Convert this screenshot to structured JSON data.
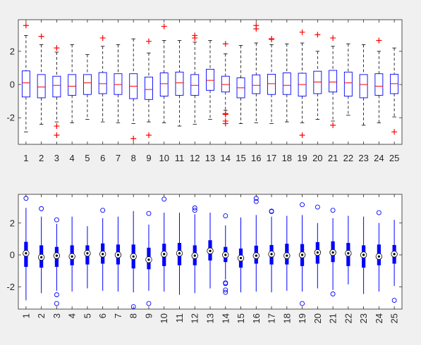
{
  "colors": {
    "figure_bg": "#f0f0f0",
    "axes_bg": "#ffffff",
    "axis_line": "#262626",
    "box": "#0000ff",
    "whisker": "#000000",
    "median_traditional": "#ff0000",
    "outlier_traditional": "#ff0000",
    "outlier_compact": "#0000ff"
  },
  "chart_data": [
    {
      "type": "box",
      "style": "traditional",
      "categories": [
        "1",
        "2",
        "3",
        "4",
        "5",
        "6",
        "7",
        "8",
        "9",
        "10",
        "11",
        "12",
        "13",
        "14",
        "15",
        "16",
        "17",
        "18",
        "19",
        "20",
        "21",
        "22",
        "23",
        "24",
        "25"
      ],
      "ylim": [
        -3.6,
        3.9
      ],
      "yticks": [
        -2,
        0,
        2
      ],
      "ytick_labels": [
        "-2",
        "0",
        "2"
      ],
      "tick_label_rotation": 0,
      "outlier_marker": "+",
      "grid": false,
      "boxes": [
        {
          "label": "1",
          "min": -2.85,
          "q1": -0.75,
          "median": 0.1,
          "q3": 0.82,
          "max": 2.95,
          "outliers": [
            3.55
          ]
        },
        {
          "label": "2",
          "min": -2.4,
          "q1": -0.8,
          "median": -0.15,
          "q3": 0.6,
          "max": 2.4,
          "outliers": [
            2.9
          ]
        },
        {
          "label": "3",
          "min": -2.25,
          "q1": -0.75,
          "median": -0.05,
          "q3": 0.5,
          "max": 1.95,
          "outliers": [
            2.2,
            -2.5,
            -3.05
          ]
        },
        {
          "label": "4",
          "min": -2.3,
          "q1": -0.65,
          "median": -0.1,
          "q3": 0.6,
          "max": 2.4,
          "outliers": []
        },
        {
          "label": "5",
          "min": -2.1,
          "q1": -0.6,
          "median": 0.1,
          "q3": 0.6,
          "max": 1.8,
          "outliers": []
        },
        {
          "label": "6",
          "min": -2.25,
          "q1": -0.55,
          "median": 0.05,
          "q3": 0.72,
          "max": 2.3,
          "outliers": [
            2.8
          ]
        },
        {
          "label": "7",
          "min": -2.3,
          "q1": -0.6,
          "median": 0.0,
          "q3": 0.65,
          "max": 2.4,
          "outliers": []
        },
        {
          "label": "8",
          "min": -2.35,
          "q1": -0.85,
          "median": -0.1,
          "q3": 0.65,
          "max": 2.75,
          "outliers": [
            -3.25
          ]
        },
        {
          "label": "9",
          "min": -2.25,
          "q1": -0.9,
          "median": -0.3,
          "q3": 0.45,
          "max": 1.9,
          "outliers": [
            2.6,
            -3.05
          ]
        },
        {
          "label": "10",
          "min": -2.3,
          "q1": -0.7,
          "median": 0.05,
          "q3": 0.7,
          "max": 2.65,
          "outliers": [
            3.5
          ]
        },
        {
          "label": "11",
          "min": -2.5,
          "q1": -0.65,
          "median": 0.1,
          "q3": 0.75,
          "max": 2.65,
          "outliers": []
        },
        {
          "label": "12",
          "min": -2.4,
          "q1": -0.65,
          "median": -0.05,
          "q3": 0.6,
          "max": 2.55,
          "outliers": [
            2.95,
            2.8
          ]
        },
        {
          "label": "13",
          "min": -2.1,
          "q1": -0.35,
          "median": 0.25,
          "q3": 0.92,
          "max": 2.65,
          "outliers": []
        },
        {
          "label": "14",
          "min": -1.55,
          "q1": -0.45,
          "median": 0.0,
          "q3": 0.5,
          "max": 1.85,
          "outliers": [
            2.45,
            -1.75,
            -1.8,
            -2.2,
            -2.35
          ]
        },
        {
          "label": "15",
          "min": -2.35,
          "q1": -0.8,
          "median": -0.2,
          "q3": 0.4,
          "max": 2.35,
          "outliers": []
        },
        {
          "label": "16",
          "min": -2.3,
          "q1": -0.55,
          "median": -0.05,
          "q3": 0.58,
          "max": 2.5,
          "outliers": [
            3.35,
            3.55
          ]
        },
        {
          "label": "17",
          "min": -2.35,
          "q1": -0.6,
          "median": 0.05,
          "q3": 0.62,
          "max": 2.4,
          "outliers": [
            2.72,
            2.75
          ]
        },
        {
          "label": "18",
          "min": -2.25,
          "q1": -0.6,
          "median": -0.05,
          "q3": 0.7,
          "max": 2.45,
          "outliers": []
        },
        {
          "label": "19",
          "min": -2.3,
          "q1": -0.7,
          "median": 0.0,
          "q3": 0.68,
          "max": 2.5,
          "outliers": [
            3.15,
            -3.05
          ]
        },
        {
          "label": "20",
          "min": -2.1,
          "q1": -0.55,
          "median": 0.15,
          "q3": 0.8,
          "max": 2.0,
          "outliers": [
            3.0
          ]
        },
        {
          "label": "21",
          "min": -2.2,
          "q1": -0.45,
          "median": 0.15,
          "q3": 0.85,
          "max": 2.3,
          "outliers": [
            2.8,
            -2.45
          ]
        },
        {
          "label": "22",
          "min": -1.85,
          "q1": -0.7,
          "median": 0.1,
          "q3": 0.75,
          "max": 2.45,
          "outliers": []
        },
        {
          "label": "23",
          "min": -2.45,
          "q1": -0.8,
          "median": 0.0,
          "q3": 0.6,
          "max": 2.4,
          "outliers": []
        },
        {
          "label": "24",
          "min": -2.3,
          "q1": -0.65,
          "median": -0.1,
          "q3": 0.65,
          "max": 2.0,
          "outliers": [
            2.65
          ]
        },
        {
          "label": "25",
          "min": -1.95,
          "q1": -0.55,
          "median": 0.05,
          "q3": 0.62,
          "max": 2.2,
          "outliers": [
            -2.85
          ]
        }
      ]
    },
    {
      "type": "box",
      "style": "compact",
      "categories": [
        "1",
        "2",
        "3",
        "4",
        "5",
        "6",
        "7",
        "8",
        "9",
        "10",
        "11",
        "12",
        "13",
        "14",
        "15",
        "16",
        "17",
        "18",
        "19",
        "20",
        "21",
        "22",
        "23",
        "24",
        "25"
      ],
      "ylim": [
        -3.4,
        3.8
      ],
      "yticks": [
        -2,
        0,
        2
      ],
      "ytick_labels": [
        "-2",
        "0",
        "2"
      ],
      "tick_label_rotation": -90,
      "outlier_marker": "o",
      "grid": false,
      "same_data_as_chart": 1
    }
  ]
}
